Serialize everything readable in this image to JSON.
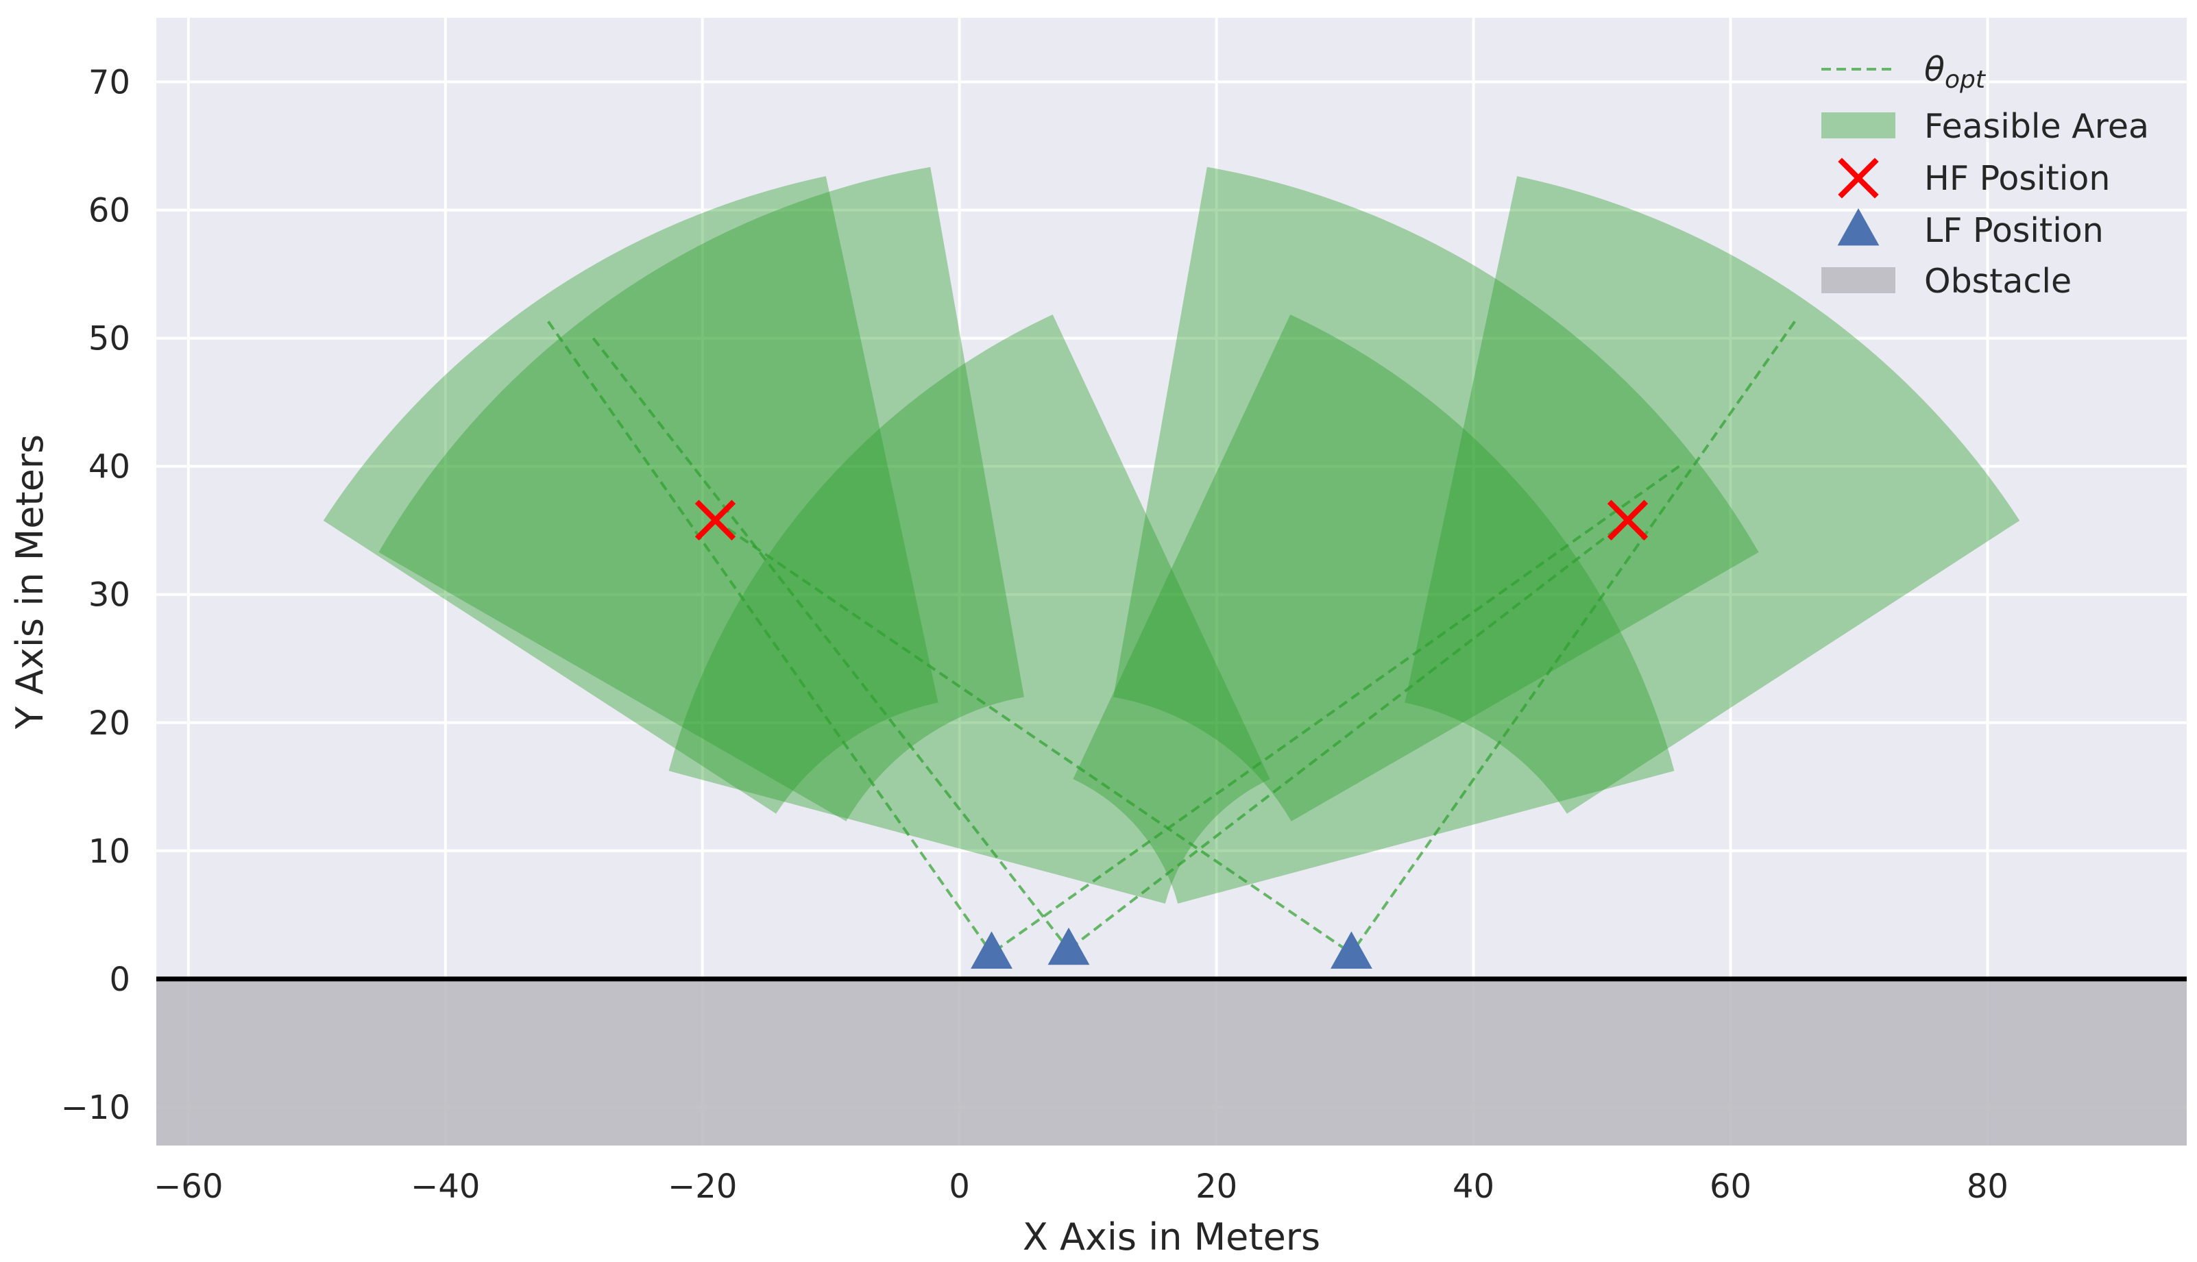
{
  "chart_data": {
    "type": "scatter",
    "title": "",
    "xlabel": "X Axis in Meters",
    "ylabel": "Y Axis in Meters",
    "xlim": [
      -62.5,
      95.5
    ],
    "ylim": [
      -13.0,
      75.0
    ],
    "xticks": [
      -60,
      -40,
      -20,
      0,
      20,
      40,
      60,
      80
    ],
    "yticks": [
      -10,
      0,
      10,
      20,
      30,
      40,
      50,
      60,
      70
    ],
    "x_tick_labels": [
      "−60",
      "−40",
      "−20",
      "0",
      "20",
      "40",
      "60",
      "80"
    ],
    "y_tick_labels": [
      "−10",
      "0",
      "10",
      "20",
      "30",
      "40",
      "50",
      "60",
      "70"
    ],
    "grid": true,
    "legend_position": "top-right",
    "colors": {
      "background": "#eaeaf2",
      "grid": "#ffffff",
      "feasible_area": "#2ca02c",
      "theta_opt": "#2ca02c",
      "hf_marker": "#ff0000",
      "lf_marker": "#4c72b0",
      "obstacle": "#bbbbc1",
      "ground_line": "#000000"
    },
    "legend": [
      {
        "label": "θ",
        "subscript": "opt",
        "kind": "dashed-line"
      },
      {
        "label": "Feasible Area",
        "kind": "patch"
      },
      {
        "label": "HF Position",
        "kind": "x-marker"
      },
      {
        "label": "LF Position",
        "kind": "triangle-marker"
      },
      {
        "label": "Obstacle",
        "kind": "obstacle-patch"
      }
    ],
    "obstacle": {
      "x": [
        -62.5,
        95.5
      ],
      "y": [
        -13.0,
        0.0
      ]
    },
    "ground_line_y": 0,
    "hf_positions": [
      {
        "x": -19,
        "y": 35.8
      },
      {
        "x": 52,
        "y": 35.8
      }
    ],
    "lf_positions": [
      {
        "x": 2.5,
        "y": 2.0
      },
      {
        "x": 8.5,
        "y": 2.3
      },
      {
        "x": 30.5,
        "y": 2.0
      }
    ],
    "feasible_areas": [
      {
        "center": [
          2.5,
          2.0
        ],
        "r_inner": 20.0,
        "r_outer": 62.0,
        "theta_start": 102,
        "theta_end": 147
      },
      {
        "center": [
          8.5,
          2.3
        ],
        "r_inner": 20.0,
        "r_outer": 62.0,
        "theta_start": 100,
        "theta_end": 150
      },
      {
        "center": [
          30.5,
          2.0
        ],
        "r_inner": 15.0,
        "r_outer": 55.0,
        "theta_start": 115,
        "theta_end": 165
      },
      {
        "center": [
          8.5,
          2.3
        ],
        "r_inner": 20.0,
        "r_outer": 62.0,
        "theta_start": 30,
        "theta_end": 80
      },
      {
        "center": [
          30.5,
          2.0
        ],
        "r_inner": 20.0,
        "r_outer": 62.0,
        "theta_start": 33,
        "theta_end": 78
      },
      {
        "center": [
          2.5,
          2.0
        ],
        "r_inner": 15.0,
        "r_outer": 55.0,
        "theta_start": 15,
        "theta_end": 65
      }
    ],
    "theta_opt_lines": [
      {
        "x": [
          -32,
          2.5
        ],
        "y": [
          51.3,
          2.0
        ]
      },
      {
        "x": [
          -28.5,
          8.5
        ],
        "y": [
          50.0,
          2.3
        ]
      },
      {
        "x": [
          -19,
          30.5
        ],
        "y": [
          35.8,
          2.0
        ]
      },
      {
        "x": [
          65,
          30.5
        ],
        "y": [
          51.3,
          2.0
        ]
      },
      {
        "x": [
          56,
          2.5
        ],
        "y": [
          40.0,
          2.0
        ]
      },
      {
        "x": [
          52,
          8.5
        ],
        "y": [
          35.8,
          2.3
        ]
      }
    ]
  }
}
